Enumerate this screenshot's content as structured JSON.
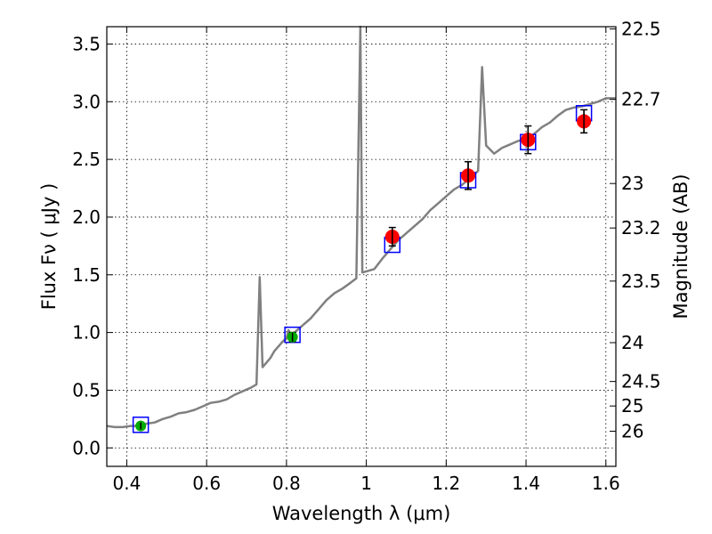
{
  "chart_data": {
    "type": "line",
    "xlabel": "Wavelength  λ (μm)",
    "ylabel": "Flux  Fν  ( μJy )",
    "ylabel_right": "Magnitude (AB)",
    "xlim": [
      0.35,
      1.625
    ],
    "ylim": [
      -0.16,
      3.65
    ],
    "grid": true,
    "x_ticks": [
      0.4,
      0.6,
      0.8,
      1.0,
      1.2,
      1.4,
      1.6
    ],
    "x_tick_labels": [
      "0.4",
      "0.6",
      "0.8",
      "1",
      "1.2",
      "1.4",
      "1.6"
    ],
    "y_ticks": [
      0.0,
      0.5,
      1.0,
      1.5,
      2.0,
      2.5,
      3.0,
      3.5
    ],
    "y_tick_labels": [
      "0.0",
      "0.5",
      "1.0",
      "1.5",
      "2.0",
      "2.5",
      "3.0",
      "3.5"
    ],
    "right_ticks": [
      {
        "mag": 22.5,
        "label": "22.5"
      },
      {
        "mag": 22.7,
        "label": "22.7"
      },
      {
        "mag": 23.0,
        "label": "23"
      },
      {
        "mag": 23.2,
        "label": "23.2"
      },
      {
        "mag": 23.5,
        "label": "23.5"
      },
      {
        "mag": 24.0,
        "label": "24"
      },
      {
        "mag": 24.5,
        "label": "24.5"
      },
      {
        "mag": 25.0,
        "label": "25"
      },
      {
        "mag": 26.0,
        "label": "26"
      }
    ],
    "spectrum": {
      "color": "#808080",
      "points": [
        [
          0.35,
          0.19
        ],
        [
          0.37,
          0.18
        ],
        [
          0.39,
          0.18
        ],
        [
          0.41,
          0.19
        ],
        [
          0.43,
          0.19
        ],
        [
          0.45,
          0.21
        ],
        [
          0.47,
          0.22
        ],
        [
          0.49,
          0.25
        ],
        [
          0.51,
          0.27
        ],
        [
          0.53,
          0.3
        ],
        [
          0.55,
          0.31
        ],
        [
          0.57,
          0.33
        ],
        [
          0.59,
          0.36
        ],
        [
          0.61,
          0.39
        ],
        [
          0.63,
          0.4
        ],
        [
          0.65,
          0.42
        ],
        [
          0.67,
          0.46
        ],
        [
          0.69,
          0.49
        ],
        [
          0.71,
          0.52
        ],
        [
          0.725,
          0.55
        ],
        [
          0.733,
          1.48
        ],
        [
          0.74,
          0.7
        ],
        [
          0.75,
          0.74
        ],
        [
          0.76,
          0.78
        ],
        [
          0.77,
          0.84
        ],
        [
          0.78,
          0.88
        ],
        [
          0.79,
          0.92
        ],
        [
          0.8,
          0.95
        ],
        [
          0.805,
          1.02
        ],
        [
          0.81,
          0.99
        ],
        [
          0.82,
          1.0
        ],
        [
          0.84,
          1.06
        ],
        [
          0.86,
          1.12
        ],
        [
          0.88,
          1.2
        ],
        [
          0.9,
          1.28
        ],
        [
          0.92,
          1.34
        ],
        [
          0.94,
          1.38
        ],
        [
          0.96,
          1.43
        ],
        [
          0.975,
          1.47
        ],
        [
          0.985,
          3.65
        ],
        [
          0.99,
          1.52
        ],
        [
          1.0,
          1.53
        ],
        [
          1.02,
          1.55
        ],
        [
          1.04,
          1.64
        ],
        [
          1.06,
          1.72
        ],
        [
          1.08,
          1.8
        ],
        [
          1.1,
          1.86
        ],
        [
          1.12,
          1.92
        ],
        [
          1.14,
          1.98
        ],
        [
          1.16,
          2.06
        ],
        [
          1.18,
          2.12
        ],
        [
          1.2,
          2.18
        ],
        [
          1.22,
          2.24
        ],
        [
          1.24,
          2.28
        ],
        [
          1.26,
          2.34
        ],
        [
          1.28,
          2.4
        ],
        [
          1.29,
          3.3
        ],
        [
          1.3,
          2.62
        ],
        [
          1.32,
          2.55
        ],
        [
          1.34,
          2.6
        ],
        [
          1.36,
          2.63
        ],
        [
          1.38,
          2.66
        ],
        [
          1.4,
          2.68
        ],
        [
          1.42,
          2.72
        ],
        [
          1.44,
          2.78
        ],
        [
          1.46,
          2.82
        ],
        [
          1.48,
          2.88
        ],
        [
          1.5,
          2.93
        ],
        [
          1.52,
          2.95
        ],
        [
          1.54,
          2.96
        ],
        [
          1.56,
          2.98
        ],
        [
          1.58,
          3.0
        ],
        [
          1.6,
          3.03
        ],
        [
          1.625,
          3.03
        ]
      ]
    },
    "model_points": {
      "color": "#0000ff",
      "points": [
        {
          "x": 0.435,
          "y": 0.2
        },
        {
          "x": 0.815,
          "y": 0.98
        },
        {
          "x": 1.065,
          "y": 1.76
        },
        {
          "x": 1.255,
          "y": 2.32
        },
        {
          "x": 1.405,
          "y": 2.65
        },
        {
          "x": 1.545,
          "y": 2.9
        }
      ]
    },
    "optical_observations": {
      "color": "#00aa00",
      "points": [
        {
          "x": 0.435,
          "y": 0.19,
          "err": 0.03
        },
        {
          "x": 0.815,
          "y": 0.96,
          "err": 0.04
        }
      ]
    },
    "nir_observations": {
      "color": "#ff0000",
      "points": [
        {
          "x": 1.065,
          "y": 1.83,
          "err": 0.08
        },
        {
          "x": 1.255,
          "y": 2.36,
          "err": 0.12
        },
        {
          "x": 1.405,
          "y": 2.67,
          "err": 0.12
        },
        {
          "x": 1.545,
          "y": 2.83,
          "err": 0.1
        }
      ]
    }
  }
}
